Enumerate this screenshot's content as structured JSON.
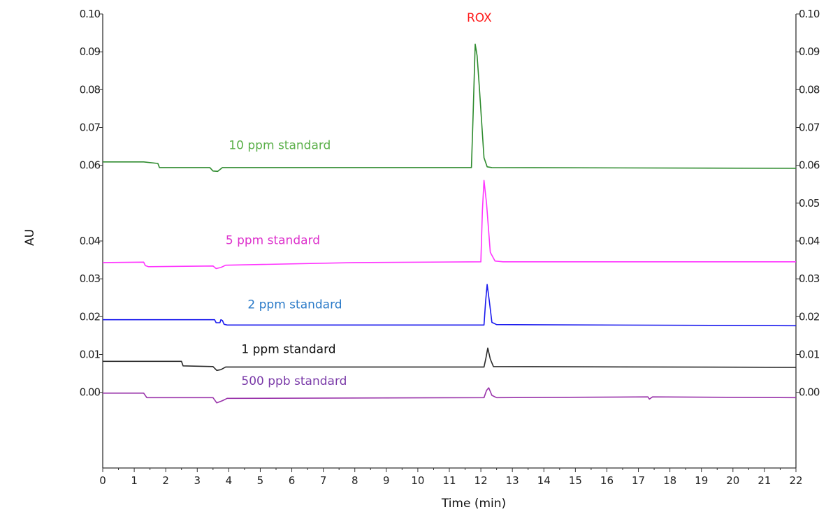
{
  "chart_data": {
    "type": "line",
    "xlabel": "Time (min)",
    "ylabel": "AU",
    "xlim": [
      0,
      22
    ],
    "ylim": [
      -0.002,
      0.01
    ],
    "x_ticks": [
      "0",
      "1",
      "2",
      "3",
      "4",
      "5",
      "6",
      "7",
      "8",
      "9",
      "10",
      "11",
      "12",
      "13",
      "14",
      "15",
      "16",
      "17",
      "18",
      "19",
      "20",
      "21",
      "22"
    ],
    "y_ticks_left": [
      {
        "label": "0.10",
        "value": 0.01
      },
      {
        "label": "0.09",
        "value": 0.009
      },
      {
        "label": "0.08",
        "value": 0.008
      },
      {
        "label": "0.07",
        "value": 0.007
      },
      {
        "label": "0.06",
        "value": 0.006
      },
      {
        "label": "0.04",
        "value": 0.004
      },
      {
        "label": "0.03",
        "value": 0.003
      },
      {
        "label": "0.02",
        "value": 0.002
      },
      {
        "label": "0.01",
        "value": 0.001
      },
      {
        "label": "0.00",
        "value": 0.0
      }
    ],
    "y_ticks_right": [
      {
        "label": "0.10",
        "value": 0.01
      },
      {
        "label": "0.09",
        "value": 0.009
      },
      {
        "label": "0.08",
        "value": 0.008
      },
      {
        "label": "0.07",
        "value": 0.007
      },
      {
        "label": "0.06",
        "value": 0.006
      },
      {
        "label": "0.05",
        "value": 0.005
      },
      {
        "label": "0.04",
        "value": 0.004
      },
      {
        "label": "0.03",
        "value": 0.003
      },
      {
        "label": "0.02",
        "value": 0.002
      },
      {
        "label": "0.01",
        "value": 0.001
      },
      {
        "label": "0.00",
        "value": 0.0
      }
    ],
    "annotations": [
      {
        "text": "ROX",
        "color": "#ff1a1a",
        "x": 11.95,
        "y": 0.0098
      }
    ],
    "series": [
      {
        "name": "10 ppm standard",
        "color": "#2e8b2e",
        "label_color": "#5bb04a",
        "label_anchor": [
          4.0,
          0.00643
        ],
        "points": [
          [
            0,
            0.00609
          ],
          [
            1.3,
            0.00609
          ],
          [
            1.75,
            0.00605
          ],
          [
            1.8,
            0.00594
          ],
          [
            3.4,
            0.00594
          ],
          [
            3.5,
            0.00585
          ],
          [
            3.65,
            0.00584
          ],
          [
            3.8,
            0.00594
          ],
          [
            11.7,
            0.00594
          ],
          [
            11.75,
            0.0072
          ],
          [
            11.82,
            0.0092
          ],
          [
            11.88,
            0.0089
          ],
          [
            11.95,
            0.0081
          ],
          [
            12.1,
            0.0062
          ],
          [
            12.2,
            0.00596
          ],
          [
            12.35,
            0.00594
          ],
          [
            22,
            0.00592
          ]
        ]
      },
      {
        "name": "5 ppm standard",
        "color": "#ff33ff",
        "label_color": "#dd33cc",
        "label_anchor": [
          3.9,
          0.00392
        ],
        "points": [
          [
            0,
            0.00343
          ],
          [
            1.3,
            0.00344
          ],
          [
            1.35,
            0.00335
          ],
          [
            1.45,
            0.00332
          ],
          [
            3.5,
            0.00334
          ],
          [
            3.6,
            0.00327
          ],
          [
            3.75,
            0.0033
          ],
          [
            3.9,
            0.00336
          ],
          [
            8,
            0.00343
          ],
          [
            12.0,
            0.00345
          ],
          [
            12.05,
            0.0048
          ],
          [
            12.1,
            0.0056
          ],
          [
            12.18,
            0.005
          ],
          [
            12.3,
            0.0037
          ],
          [
            12.45,
            0.00347
          ],
          [
            12.7,
            0.00345
          ],
          [
            22,
            0.00345
          ]
        ]
      },
      {
        "name": "2 ppm standard",
        "color": "#1a1aee",
        "label_color": "#2a7ac8",
        "label_anchor": [
          4.6,
          0.00222
        ],
        "points": [
          [
            0,
            0.00192
          ],
          [
            3.55,
            0.00192
          ],
          [
            3.6,
            0.00184
          ],
          [
            3.72,
            0.00184
          ],
          [
            3.75,
            0.00192
          ],
          [
            3.8,
            0.0019
          ],
          [
            3.85,
            0.0018
          ],
          [
            3.95,
            0.00178
          ],
          [
            12.1,
            0.00178
          ],
          [
            12.15,
            0.0024
          ],
          [
            12.2,
            0.00285
          ],
          [
            12.27,
            0.0024
          ],
          [
            12.35,
            0.00185
          ],
          [
            12.5,
            0.00179
          ],
          [
            22,
            0.00176
          ]
        ]
      },
      {
        "name": "1 ppm standard",
        "color": "#2a2a2a",
        "label_color": "#111111",
        "label_anchor": [
          4.4,
          0.00104
        ],
        "points": [
          [
            0,
            0.00082
          ],
          [
            2.5,
            0.00082
          ],
          [
            2.55,
            0.0007
          ],
          [
            3.5,
            0.00068
          ],
          [
            3.62,
            0.00058
          ],
          [
            3.75,
            0.0006
          ],
          [
            3.9,
            0.00067
          ],
          [
            12.1,
            0.00067
          ],
          [
            12.16,
            0.0009
          ],
          [
            12.22,
            0.00117
          ],
          [
            12.3,
            0.00088
          ],
          [
            12.4,
            0.00068
          ],
          [
            22,
            0.00066
          ]
        ]
      },
      {
        "name": "500 ppb standard",
        "color": "#9933aa",
        "label_color": "#7a3aa8",
        "label_anchor": [
          4.4,
          0.0002
        ],
        "points": [
          [
            0,
            -2e-05
          ],
          [
            1.3,
            -2e-05
          ],
          [
            1.4,
            -0.00014
          ],
          [
            3.5,
            -0.00014
          ],
          [
            3.62,
            -0.00028
          ],
          [
            3.8,
            -0.00022
          ],
          [
            3.95,
            -0.00016
          ],
          [
            12.1,
            -0.00014
          ],
          [
            12.18,
            5e-05
          ],
          [
            12.25,
            0.00012
          ],
          [
            12.35,
            -8e-05
          ],
          [
            12.5,
            -0.00014
          ],
          [
            17.3,
            -0.00012
          ],
          [
            17.35,
            -0.00018
          ],
          [
            17.45,
            -0.00012
          ],
          [
            22,
            -0.00014
          ]
        ]
      }
    ]
  }
}
